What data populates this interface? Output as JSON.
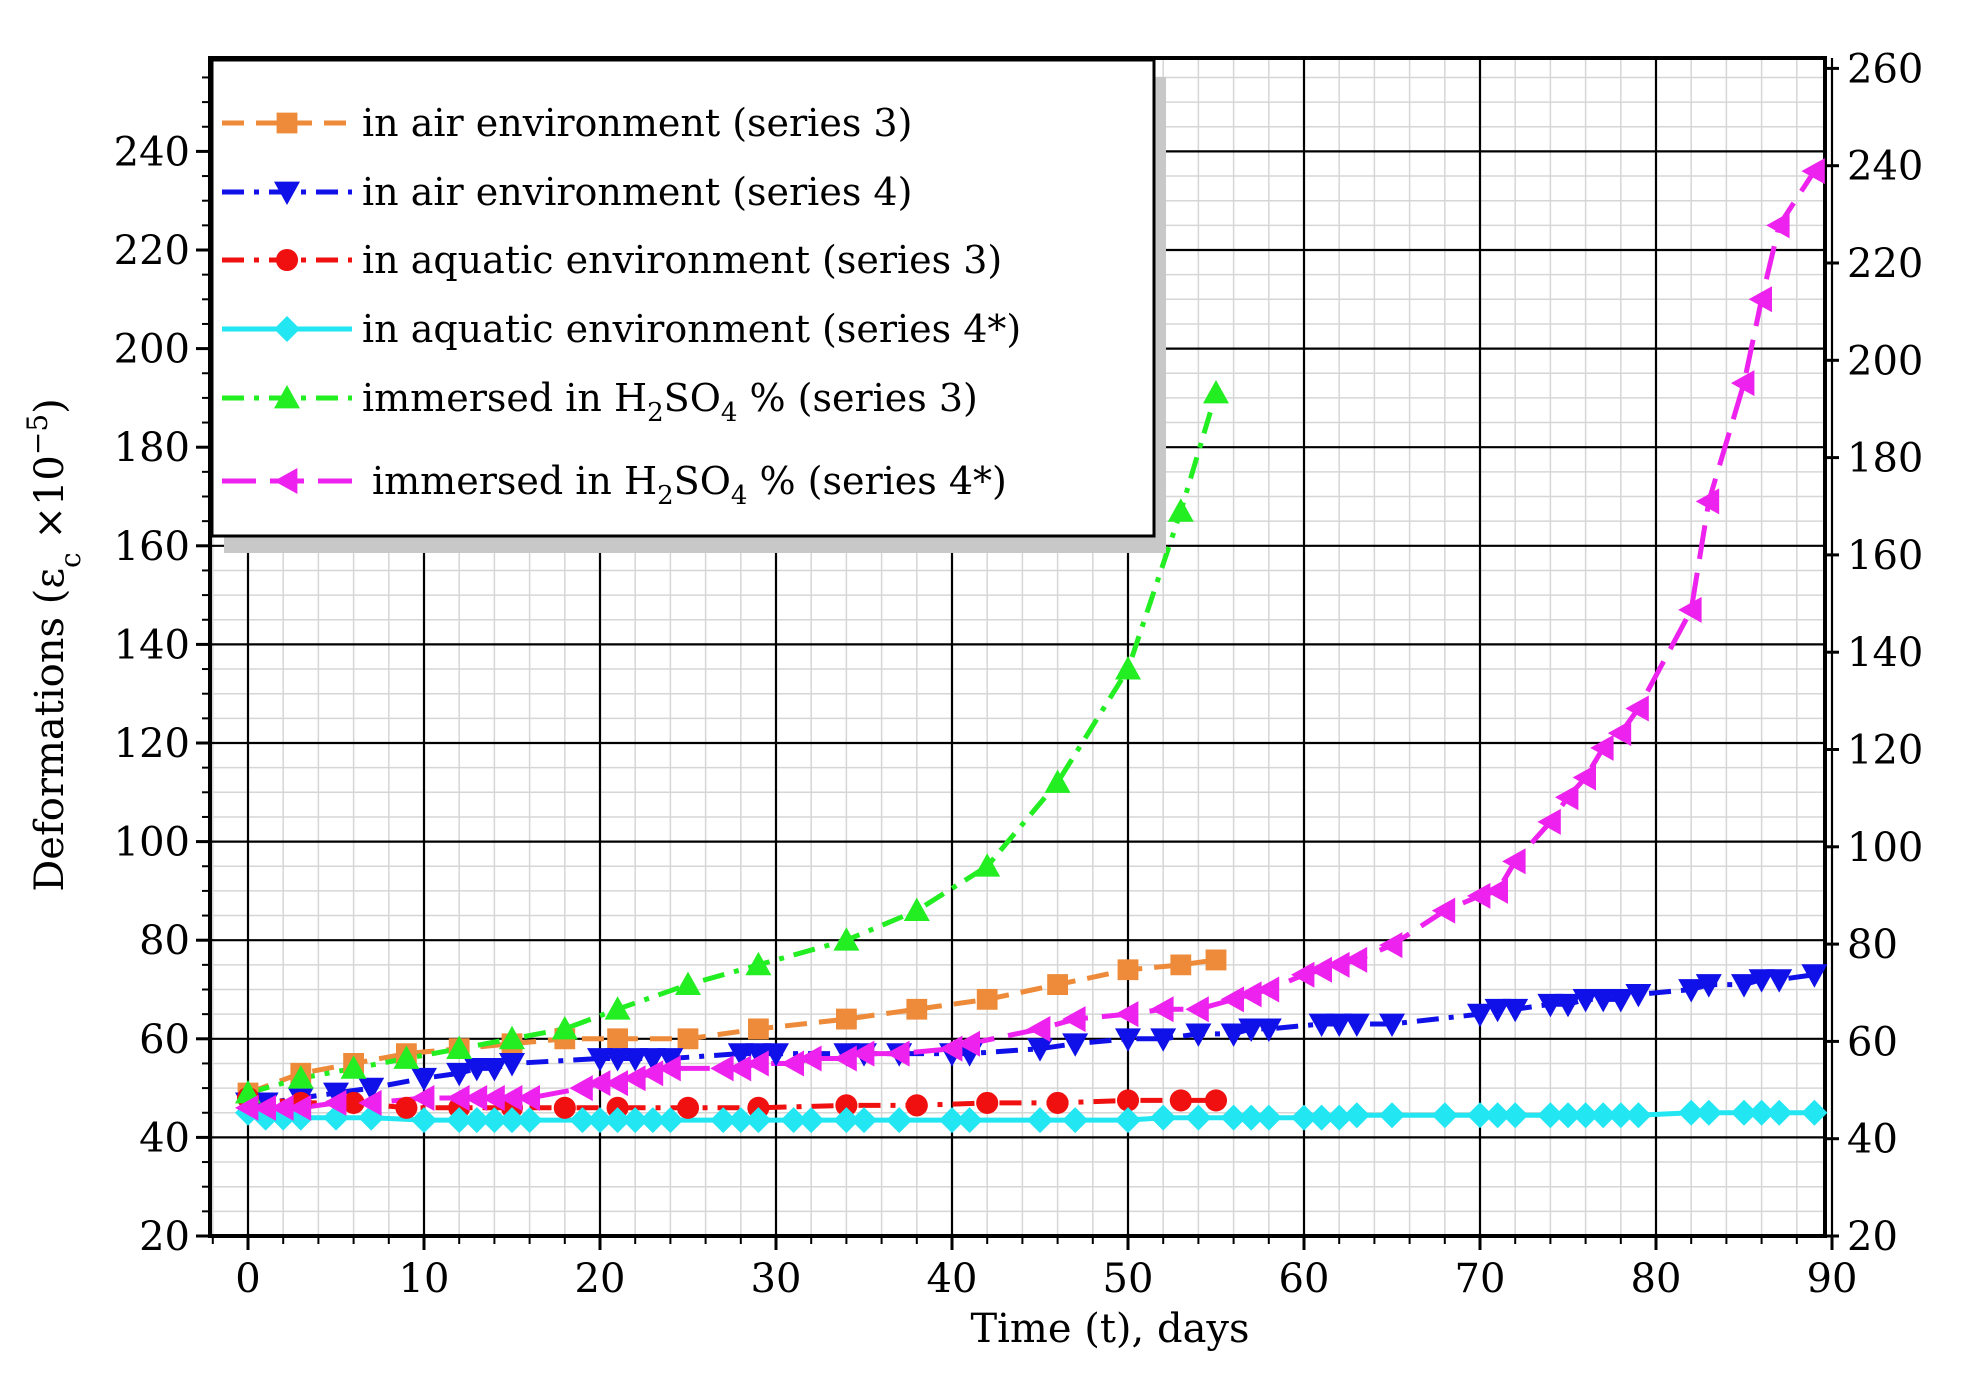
{
  "chart_data": {
    "type": "line",
    "xlabel": "Time (t), days",
    "ylabel": "Deformations (ε",
    "ylabel_sub": "c",
    "ylabel_mult": " ×10",
    "ylabel_exp": "−5",
    "ylabel_close": ")",
    "xlim": [
      -2,
      90
    ],
    "ylim_left": [
      20,
      258
    ],
    "ylim_right": [
      20,
      260
    ],
    "x_ticks": [
      0,
      10,
      20,
      30,
      40,
      50,
      60,
      70,
      80,
      90
    ],
    "y_ticks_left": [
      20,
      40,
      60,
      80,
      100,
      120,
      140,
      160,
      180,
      200,
      220,
      240
    ],
    "y_ticks_right": [
      20,
      40,
      60,
      80,
      100,
      120,
      140,
      160,
      180,
      200,
      220,
      240,
      260
    ],
    "grid": true,
    "legend_position": "top-left",
    "series": [
      {
        "name": "in air environment (series 3)",
        "color": "#ED8B3A",
        "marker": "square",
        "dash": "dash",
        "x": [
          0,
          3,
          6,
          9,
          12,
          15,
          18,
          21,
          25,
          29,
          34,
          38,
          42,
          46,
          50,
          53,
          55
        ],
        "y": [
          49,
          53,
          55,
          57,
          58,
          59,
          60,
          60,
          60,
          62,
          64,
          66,
          68,
          71,
          74,
          75,
          76
        ]
      },
      {
        "name": "in air environment (series 4)",
        "color": "#1010E8",
        "marker": "triangle-down",
        "dash": "dashdot",
        "x": [
          0,
          1,
          3,
          5,
          7,
          10,
          12,
          13,
          14,
          15,
          20,
          21,
          22,
          23,
          24,
          28,
          29,
          30,
          34,
          35,
          37,
          40,
          41,
          45,
          47,
          50,
          52,
          54,
          56,
          57,
          58,
          61,
          62,
          63,
          65,
          70,
          71,
          72,
          74,
          75,
          76,
          77,
          78,
          79,
          82,
          83,
          85,
          86,
          87,
          89
        ],
        "y": [
          47,
          47,
          48,
          49,
          50,
          52,
          53,
          54,
          54,
          55,
          56,
          56,
          56,
          56,
          56,
          57,
          57,
          57,
          57,
          57,
          57,
          57,
          57,
          58,
          59,
          60,
          60,
          61,
          61,
          62,
          62,
          63,
          63,
          63,
          63,
          65,
          66,
          66,
          67,
          67,
          68,
          68,
          68,
          69,
          70,
          71,
          71,
          72,
          72,
          73
        ]
      },
      {
        "name": "in aquatic environment (series 3)",
        "color": "#F01010",
        "marker": "circle",
        "dash": "dashdot",
        "x": [
          0,
          3,
          6,
          9,
          12,
          15,
          18,
          21,
          25,
          29,
          34,
          38,
          42,
          46,
          50,
          53,
          55
        ],
        "y": [
          48,
          47,
          47,
          46,
          46,
          46,
          46,
          46,
          46,
          46,
          46.5,
          46.5,
          47,
          47,
          47.5,
          47.5,
          47.5
        ]
      },
      {
        "name": "in aquatic environment (series 4*)",
        "color": "#22E6F2",
        "marker": "diamond",
        "dash": "solid",
        "x": [
          0,
          1,
          2,
          3,
          5,
          7,
          10,
          12,
          13,
          14,
          15,
          16,
          19,
          20,
          21,
          22,
          23,
          24,
          27,
          28,
          29,
          31,
          32,
          34,
          35,
          37,
          40,
          41,
          45,
          47,
          50,
          52,
          54,
          56,
          57,
          58,
          60,
          61,
          62,
          63,
          65,
          68,
          70,
          71,
          72,
          74,
          75,
          76,
          77,
          78,
          79,
          82,
          83,
          85,
          86,
          87,
          89
        ],
        "y": [
          45,
          44,
          44,
          44,
          44,
          44,
          43.5,
          43.5,
          43.5,
          43.5,
          43.5,
          43.5,
          43.5,
          43.5,
          43.5,
          43.5,
          43.5,
          43.5,
          43.5,
          43.5,
          43.5,
          43.5,
          43.5,
          43.5,
          43.5,
          43.5,
          43.5,
          43.5,
          43.5,
          43.5,
          43.5,
          44,
          44,
          44,
          44,
          44,
          44,
          44,
          44,
          44.5,
          44.5,
          44.5,
          44.5,
          44.5,
          44.5,
          44.5,
          44.5,
          44.5,
          44.5,
          44.5,
          44.5,
          45,
          45,
          45,
          45,
          45,
          45
        ]
      },
      {
        "name": "immersed in H2SO4 % (series 3)",
        "color": "#22EE22",
        "marker": "triangle-up",
        "dash": "dashdot",
        "x": [
          0,
          3,
          6,
          9,
          12,
          15,
          18,
          21,
          25,
          29,
          34,
          38,
          42,
          46,
          50,
          53,
          55
        ],
        "y": [
          49,
          52,
          54,
          56,
          58,
          60,
          62,
          66,
          71,
          75,
          80,
          86,
          95,
          112,
          135,
          167,
          191
        ]
      },
      {
        "name": "immersed in H2SO4 % (series 4*)",
        "color": "#EE22EE",
        "marker": "triangle-left",
        "dash": "longdash",
        "x": [
          0,
          1,
          2,
          3,
          5,
          7,
          10,
          12,
          13,
          14,
          15,
          16,
          19,
          20,
          21,
          22,
          23,
          24,
          27,
          28,
          29,
          31,
          32,
          34,
          35,
          37,
          40,
          41,
          45,
          47,
          50,
          52,
          54,
          56,
          57,
          58,
          60,
          61,
          62,
          63,
          65,
          68,
          70,
          71,
          72,
          74,
          75,
          76,
          77,
          78,
          79,
          82,
          83,
          85,
          86,
          87,
          89
        ],
        "y": [
          46,
          46,
          46,
          46,
          47,
          47,
          48,
          48,
          48,
          48,
          48,
          48,
          50,
          51,
          51,
          52,
          53,
          54,
          54,
          54,
          55,
          55,
          56,
          56,
          57,
          57,
          58,
          59,
          62,
          64,
          65,
          66,
          66,
          68,
          69,
          70,
          73,
          74,
          75,
          76,
          79,
          86,
          89,
          90,
          96,
          104,
          109,
          113,
          119,
          122,
          127,
          147,
          169,
          193,
          210,
          225,
          236
        ]
      }
    ]
  }
}
